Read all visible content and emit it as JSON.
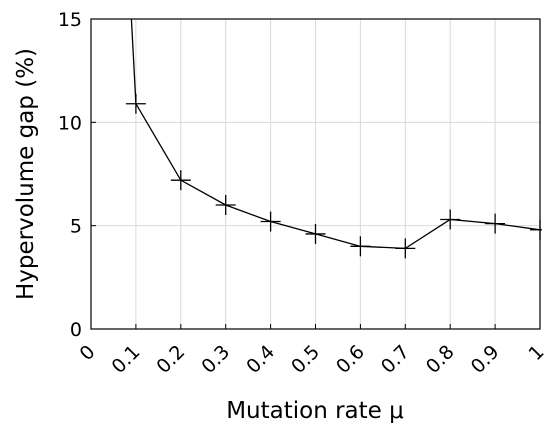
{
  "chart_data": {
    "type": "line",
    "xlabel": "Mutation rate μ",
    "ylabel": "Hypervolume gap (%)",
    "xlim": [
      0,
      1
    ],
    "ylim": [
      0,
      15
    ],
    "xticks": [
      "0",
      "0.1",
      "0.2",
      "0.3",
      "0.4",
      "0.5",
      "0.6",
      "0.7",
      "0.8",
      "0.9",
      "1"
    ],
    "yticks": [
      "0",
      "5",
      "10",
      "15"
    ],
    "grid": true,
    "series": [
      {
        "x": [
          0.1,
          0.2,
          0.3,
          0.4,
          0.5,
          0.6,
          0.7,
          0.8,
          0.9,
          1.0
        ],
        "y": [
          10.9,
          7.2,
          6.0,
          5.2,
          4.6,
          4.0,
          3.9,
          5.3,
          5.1,
          4.8
        ],
        "line_start": {
          "x": 0.09,
          "y": 15
        },
        "color": "#000000"
      }
    ]
  }
}
